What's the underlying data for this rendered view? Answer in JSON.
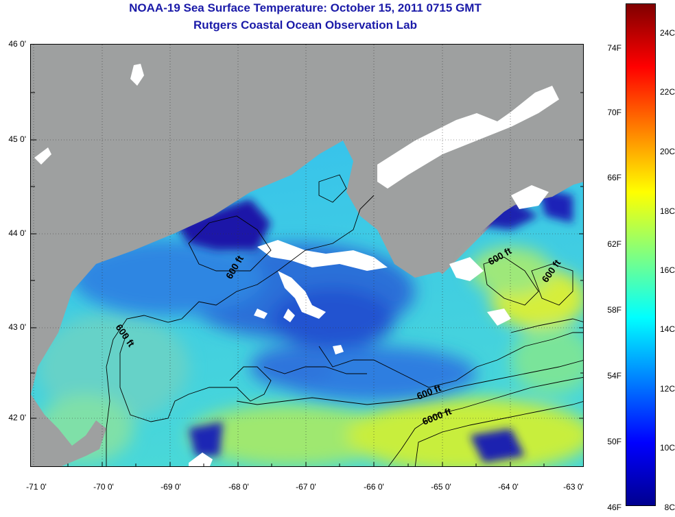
{
  "header": {
    "title": "NOAA-19 Sea Surface Temperature:  October 15, 2011 0715 GMT",
    "subtitle": "Rutgers Coastal Ocean Observation Lab"
  },
  "map": {
    "longitude_labels": [
      "-71 0'",
      "-70 0'",
      "-69 0'",
      "-68 0'",
      "-67 0'",
      "-66 0'",
      "-65 0'",
      "-64 0'",
      "-63 0'"
    ],
    "latitude_labels": [
      "46 0'",
      "45 0'",
      "44 0'",
      "43 0'",
      "42 0'"
    ],
    "contour_labels": [
      "600 ft",
      "600 ft",
      "600 ft",
      "600 ft",
      "600 ft",
      "6000 ft"
    ],
    "colors": {
      "land": "#9ea0a0",
      "cloud": "#ffffff",
      "cold_water": "#1a2cc8",
      "cool_water": "#2f9cf0",
      "mid_water": "#3ed7e6",
      "warm_water": "#b8ec48"
    }
  },
  "colorbar": {
    "fahrenheit_labels": [
      "74F",
      "70F",
      "66F",
      "62F",
      "58F",
      "54F",
      "50F",
      "46F"
    ],
    "celsius_labels": [
      "24C",
      "22C",
      "20C",
      "18C",
      "16C",
      "14C",
      "12C",
      "10C",
      "8C"
    ],
    "range_c": [
      8,
      25
    ],
    "gradient": [
      "#00008f",
      "#0000ff",
      "#0080ff",
      "#00ffff",
      "#80ff80",
      "#ffff00",
      "#ff8000",
      "#ff0000",
      "#800000"
    ]
  }
}
